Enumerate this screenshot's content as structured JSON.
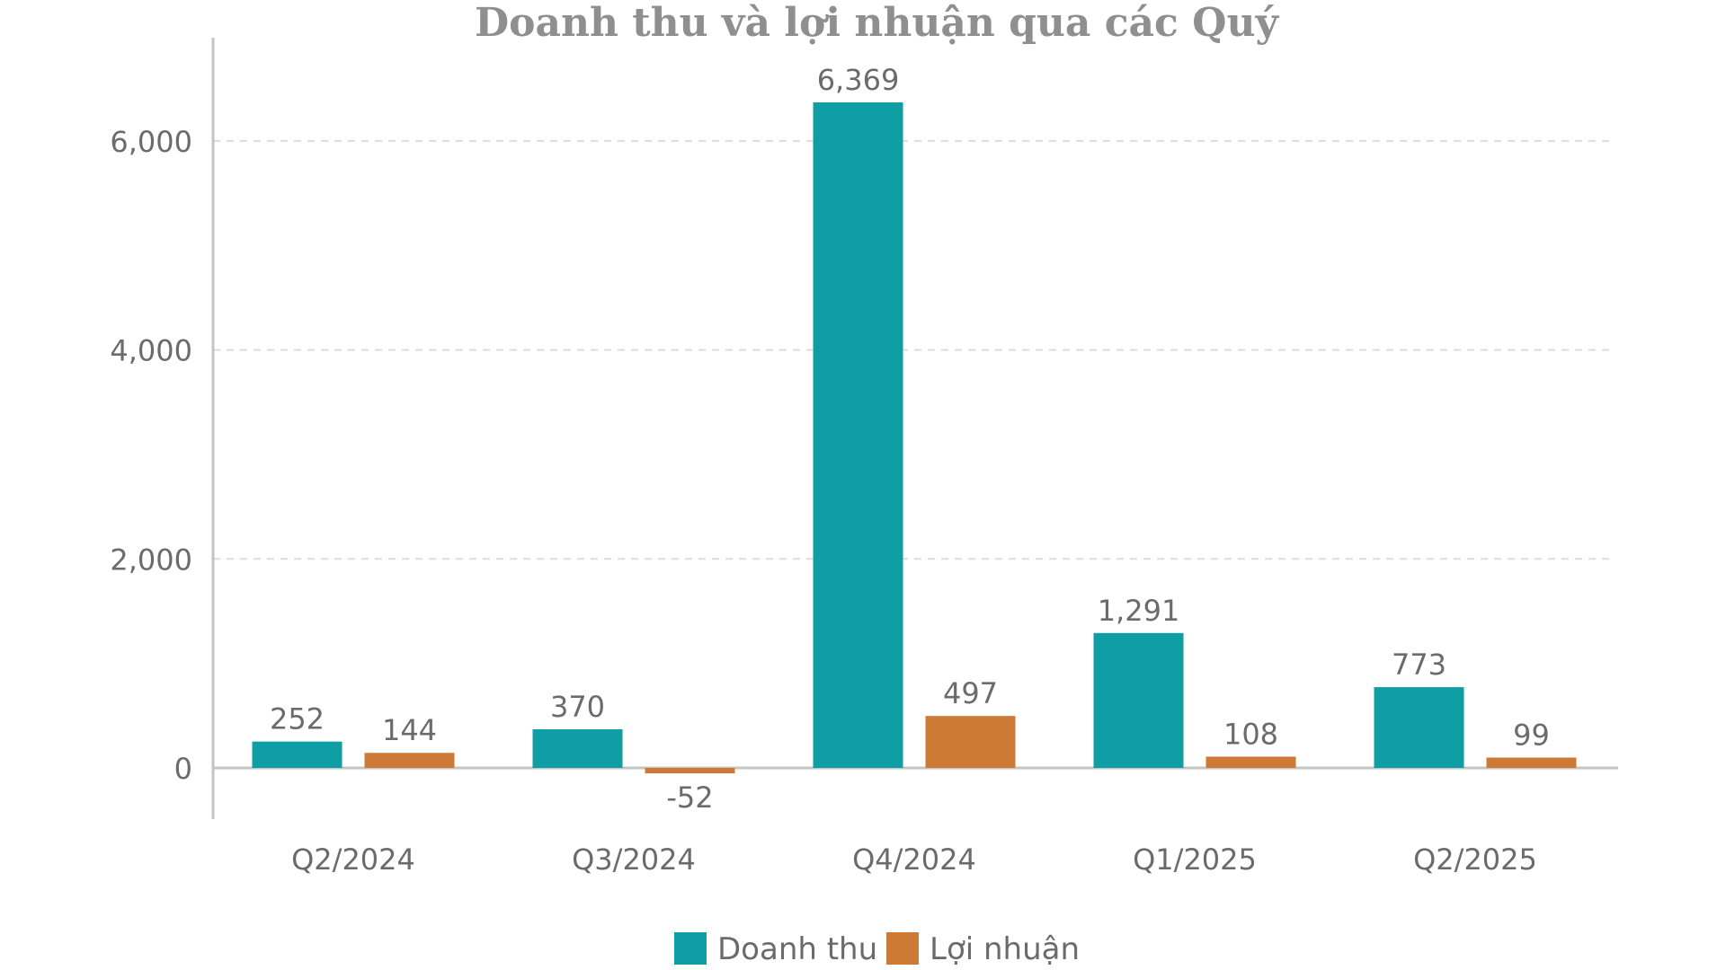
{
  "colors": {
    "revenue": "#0f9ea3",
    "profit": "#cd7a36",
    "axis": "#c4c4c4",
    "grid": "#dcdcdc",
    "text": "#6b6b6b",
    "title": "#8f8f8f"
  },
  "chart_data": {
    "type": "bar",
    "title": "Doanh thu và lợi nhuận qua các Quý",
    "categories": [
      "Q2/2024",
      "Q3/2024",
      "Q4/2024",
      "Q1/2025",
      "Q2/2025"
    ],
    "series": [
      {
        "name": "Doanh thu",
        "values": [
          252,
          370,
          6369,
          1291,
          773
        ],
        "labels": [
          "252",
          "370",
          "6,369",
          "1,291",
          "773"
        ]
      },
      {
        "name": "Lợi nhuận",
        "values": [
          144,
          -52,
          497,
          108,
          99
        ],
        "labels": [
          "144",
          "-52",
          "497",
          "108",
          "99"
        ]
      }
    ],
    "yticks": [
      0,
      2000,
      4000,
      6000
    ],
    "ytick_labels": [
      "0",
      "2,000",
      "4,000",
      "6,000"
    ],
    "ylim": [
      -500,
      7000
    ],
    "grid": true,
    "legend_position": "bottom-center"
  }
}
